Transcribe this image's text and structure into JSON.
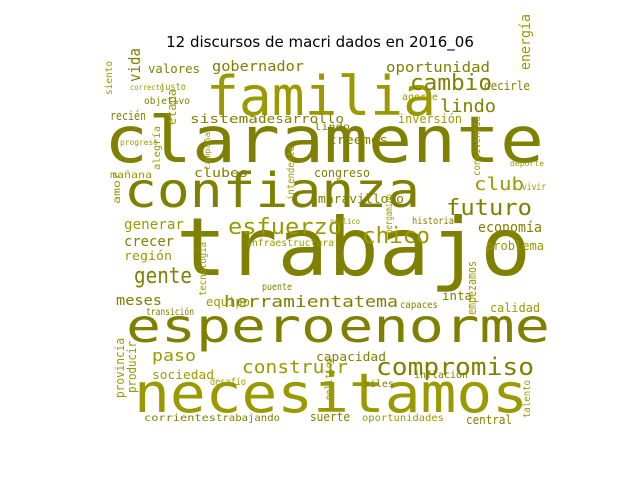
{
  "title": "12 discursos de macri dados en 2016_06",
  "colors": {
    "dark": "#808000",
    "mid": "#9a9a00",
    "light": "#c4c400"
  },
  "words": [
    {
      "text": "claramente"
    },
    {
      "text": "trabajo"
    },
    {
      "text": "confianza"
    },
    {
      "text": "espero"
    },
    {
      "text": "enorme"
    },
    {
      "text": "necesitamos"
    },
    {
      "text": "familia"
    },
    {
      "text": "compromiso"
    },
    {
      "text": "cambio"
    },
    {
      "text": "futuro"
    },
    {
      "text": "esfuerzo"
    },
    {
      "text": "chico"
    },
    {
      "text": "gente"
    },
    {
      "text": "herramienta"
    },
    {
      "text": "tema"
    },
    {
      "text": "oportunidad"
    },
    {
      "text": "gobernador"
    },
    {
      "text": "lindo"
    },
    {
      "text": "club"
    },
    {
      "text": "crecer"
    },
    {
      "text": "economía"
    },
    {
      "text": "problema"
    },
    {
      "text": "región"
    },
    {
      "text": "meses"
    },
    {
      "text": "generar"
    },
    {
      "text": "paso"
    },
    {
      "text": "construir"
    },
    {
      "text": "capacidad"
    },
    {
      "text": "vida"
    },
    {
      "text": "valores"
    },
    {
      "text": "desarrollo"
    },
    {
      "text": "sistema"
    },
    {
      "text": "creemos"
    },
    {
      "text": "inversión"
    },
    {
      "text": "maravilloso"
    },
    {
      "text": "congreso"
    },
    {
      "text": "clubes"
    },
    {
      "text": "etapa"
    },
    {
      "text": "energía"
    },
    {
      "text": "objetivo"
    },
    {
      "text": "calidad"
    },
    {
      "text": "inta"
    },
    {
      "text": "equipo"
    },
    {
      "text": "infraestructura"
    },
    {
      "text": "sociedad"
    },
    {
      "text": "producir"
    },
    {
      "text": "provincia"
    },
    {
      "text": "amor"
    },
    {
      "text": "mañana"
    },
    {
      "text": "recién"
    },
    {
      "text": "corrientes"
    },
    {
      "text": "trabajando"
    },
    {
      "text": "suerte"
    },
    {
      "text": "oportunidades"
    },
    {
      "text": "central"
    },
    {
      "text": "empezamos"
    },
    {
      "text": "decirle"
    },
    {
      "text": "miles"
    },
    {
      "text": "inflación"
    },
    {
      "text": "talento"
    },
    {
      "text": "historia"
    },
    {
      "text": "pergamino"
    },
    {
      "text": "convivencia"
    },
    {
      "text": "alegría"
    },
    {
      "text": "intendente"
    },
    {
      "text": "político"
    },
    {
      "text": "lindo"
    },
    {
      "text": "vivir"
    },
    {
      "text": "transición"
    },
    {
      "text": "puente"
    },
    {
      "text": "capaces"
    },
    {
      "text": "desafío"
    },
    {
      "text": "siento"
    },
    {
      "text": "justo"
    },
    {
      "text": "correcto"
    },
    {
      "text": "agorie"
    },
    {
      "text": "deporte"
    },
    {
      "text": "campaña"
    },
    {
      "text": "progreso"
    },
    {
      "text": "público"
    },
    {
      "text": "tecnología"
    }
  ]
}
